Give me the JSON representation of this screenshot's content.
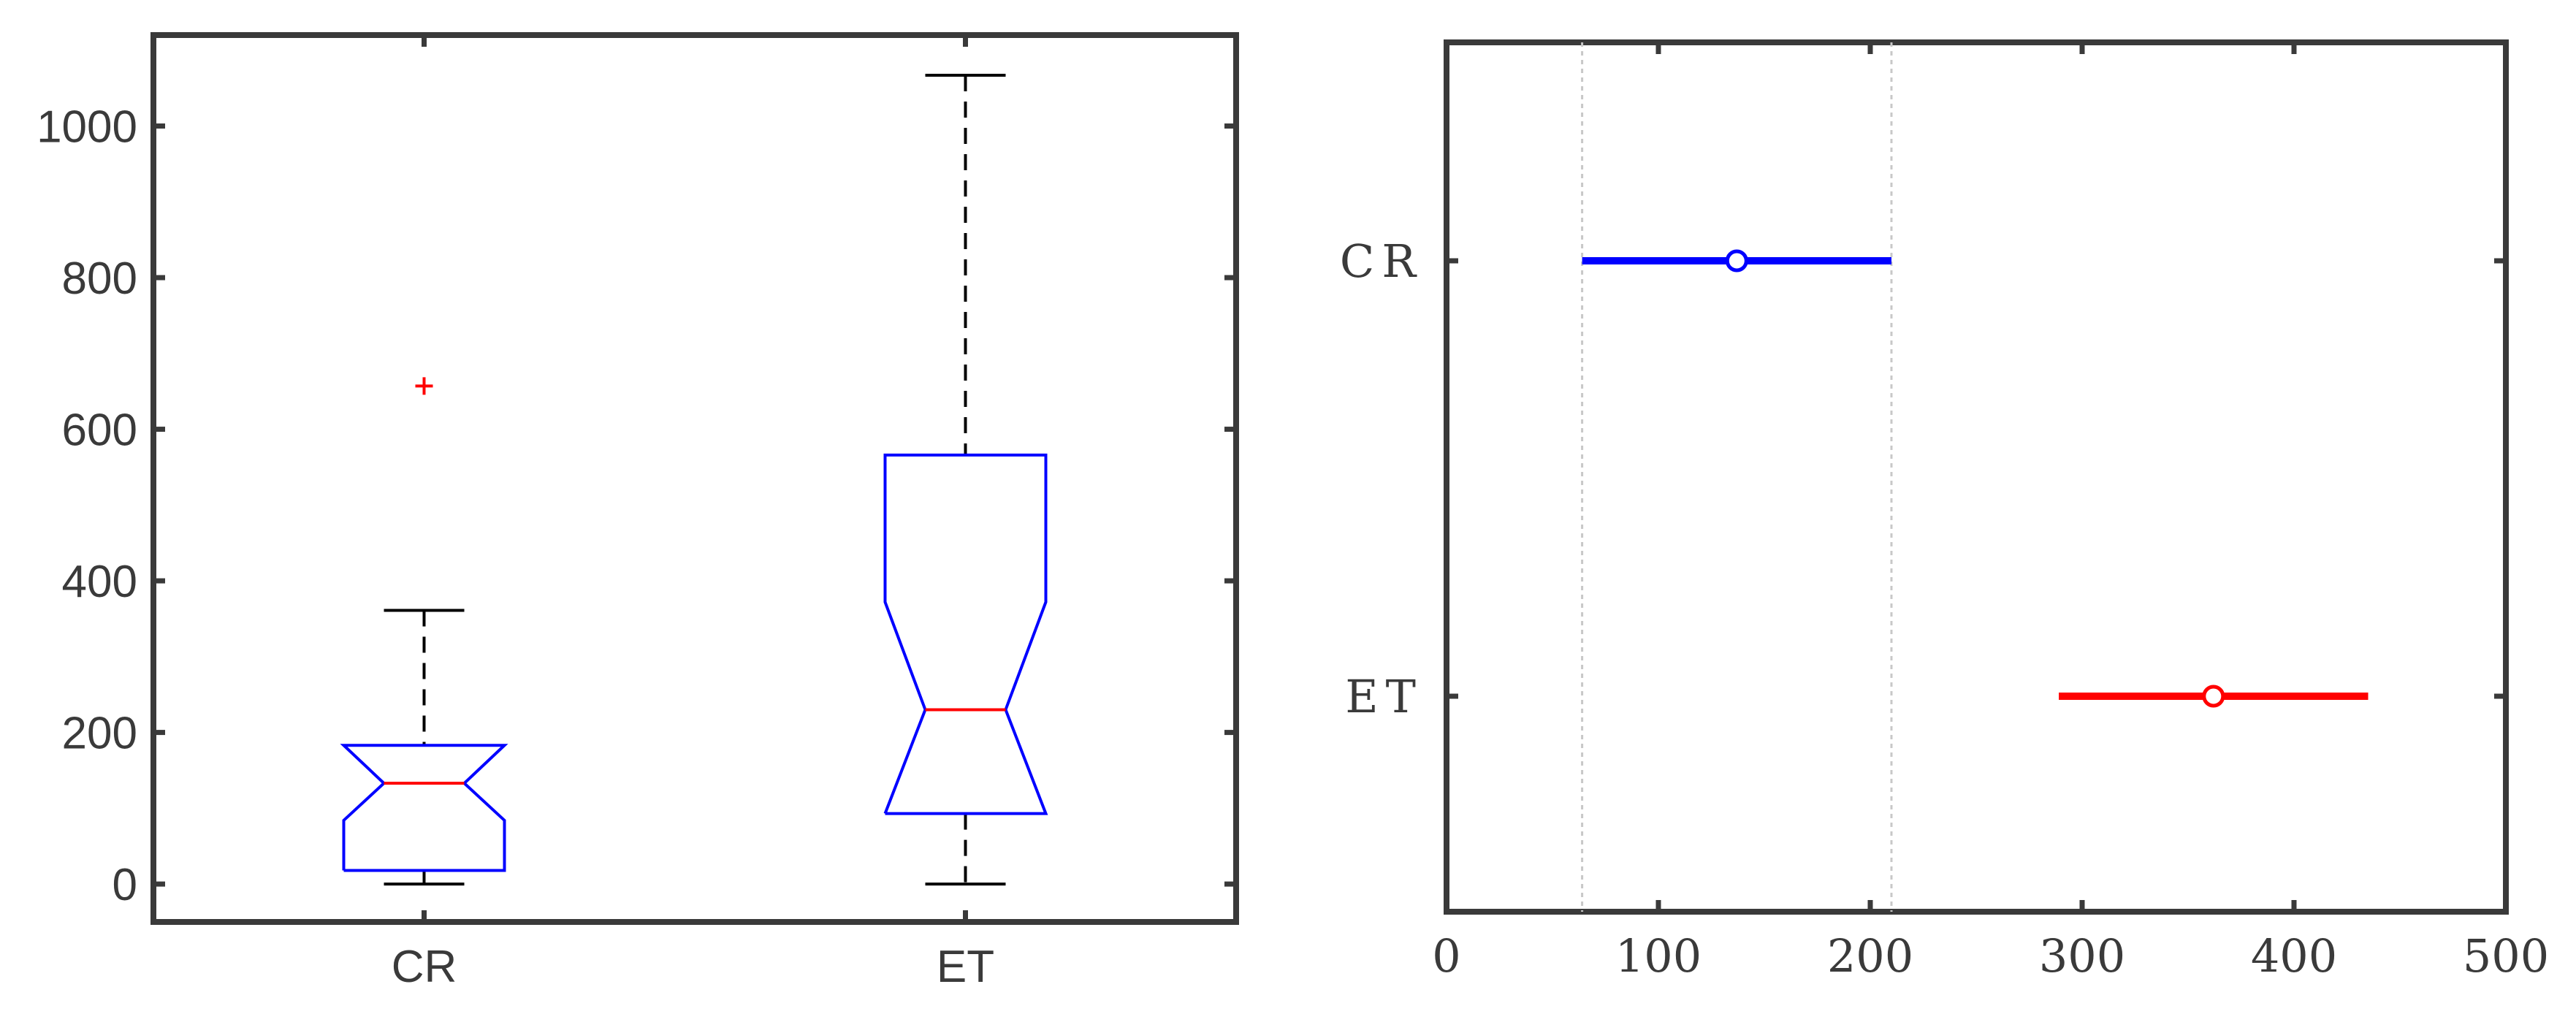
{
  "chart_data": [
    {
      "type": "boxplot",
      "notched": true,
      "categories": [
        "CR",
        "ET"
      ],
      "ylim": [
        -50,
        1120
      ],
      "yticks": [
        0,
        200,
        400,
        600,
        800,
        1000
      ],
      "grid": false,
      "boxes": [
        {
          "category": "CR",
          "whisker_low": 0,
          "q1": 18,
          "notch_low": 84,
          "median": 133,
          "notch_high": 183,
          "q3": 183,
          "whisker_high": 361,
          "outliers": [
            657
          ]
        },
        {
          "category": "ET",
          "whisker_low": 0,
          "q1": 93,
          "notch_low": 93,
          "median": 230,
          "notch_high": 372,
          "q3": 566,
          "whisker_high": 1067,
          "outliers": []
        }
      ],
      "colors": {
        "box": "#0000ff",
        "median": "#ff0000",
        "whisker": "#000000",
        "outlier": "#ff0000",
        "axes": "#3a3a3a"
      }
    },
    {
      "type": "interval",
      "categories": [
        "CR",
        "ET"
      ],
      "xlim": [
        0,
        500
      ],
      "xticks": [
        0,
        100,
        200,
        300,
        400,
        500
      ],
      "grid": false,
      "reference_lines_x": [
        64,
        210
      ],
      "intervals": [
        {
          "category": "CR",
          "low": 64,
          "estimate": 137,
          "high": 210,
          "color": "#0000ff"
        },
        {
          "category": "ET",
          "low": 289,
          "estimate": 362,
          "high": 435,
          "color": "#ff0000"
        }
      ]
    }
  ]
}
